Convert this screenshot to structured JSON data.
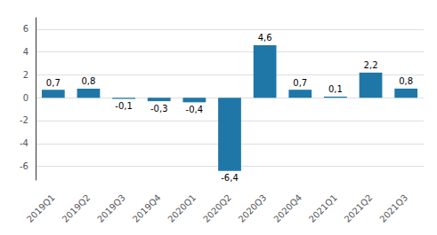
{
  "chart_data": {
    "type": "bar",
    "categories": [
      "2019Q1",
      "2019Q2",
      "2019Q3",
      "2019Q4",
      "2020Q1",
      "2020Q2",
      "2020Q3",
      "2020Q4",
      "2021Q1",
      "2021Q2",
      "2021Q3"
    ],
    "values": [
      0.7,
      0.8,
      -0.1,
      -0.3,
      -0.4,
      -6.4,
      4.6,
      0.7,
      0.1,
      2.2,
      0.8
    ],
    "value_labels": [
      "0,7",
      "0,8",
      "-0,1",
      "-0,3",
      "-0,4",
      "-6,4",
      "4,6",
      "0,7",
      "0,1",
      "2,2",
      "0,8"
    ],
    "color": "#1f77a8",
    "ylim": [
      -7.2,
      7.0
    ],
    "yticks": [
      -6,
      -4,
      -2,
      0,
      2,
      4,
      6
    ],
    "grid": true,
    "data_labels": true
  }
}
